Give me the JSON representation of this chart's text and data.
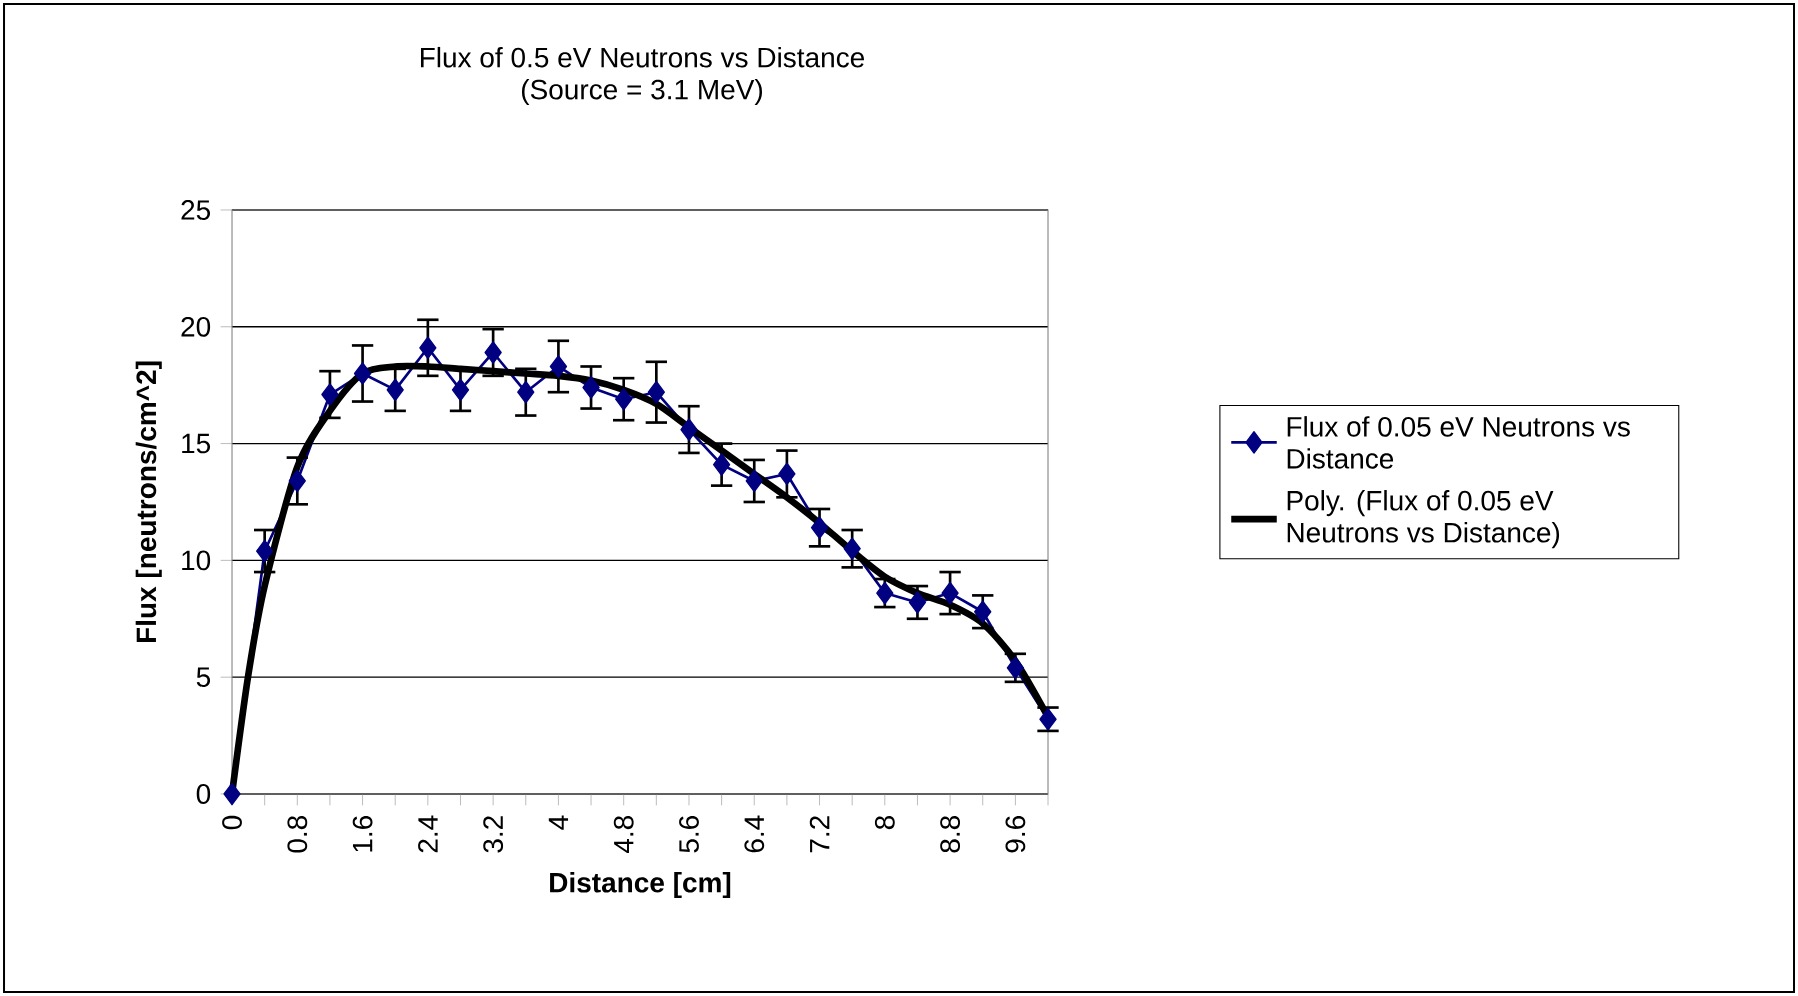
{
  "chart_data": {
    "type": "line",
    "title": "Flux of 0.5 eV Neutrons vs Distance",
    "subtitle": "(Source = 3.1 MeV)",
    "xlabel": "Distance [cm]",
    "ylabel": "Flux [neutrons/cm^2]",
    "xlim": [
      0,
      10
    ],
    "ylim": [
      0,
      25
    ],
    "xticks": [
      0,
      {
        "value": 0.4,
        "label": null
      },
      0.8,
      {
        "value": 1.2,
        "label": null
      },
      1.6,
      {
        "value": 2.0,
        "label": null
      },
      2.4,
      {
        "value": 2.8,
        "label": null
      },
      3.2,
      {
        "value": 3.6,
        "label": null
      },
      4,
      {
        "value": 4.4,
        "label": null
      },
      4.8,
      {
        "value": 5.2,
        "label": null
      },
      5.6,
      {
        "value": 6.0,
        "label": null
      },
      6.4,
      {
        "value": 6.8,
        "label": null
      },
      7.2,
      {
        "value": 7.6,
        "label": null
      },
      8,
      {
        "value": 8.4,
        "label": null
      },
      8.8,
      {
        "value": 9.2,
        "label": null
      },
      9.6,
      {
        "value": 10.0,
        "label": null
      }
    ],
    "yticks": [
      0,
      5,
      10,
      15,
      20,
      25
    ],
    "grid": "y",
    "legend": "right",
    "series": [
      {
        "name": "Flux of 0.05 eV Neutrons vs Distance",
        "color": "#000080",
        "marker": "diamond",
        "x": [
          0,
          0.4,
          0.8,
          1.2,
          1.6,
          2.0,
          2.4,
          2.8,
          3.2,
          3.6,
          4.0,
          4.4,
          4.8,
          5.2,
          5.6,
          6.0,
          6.4,
          6.8,
          7.2,
          7.6,
          8.0,
          8.4,
          8.8,
          9.2,
          9.6,
          10.0
        ],
        "values": [
          0,
          10.4,
          13.4,
          17.1,
          18.0,
          17.3,
          19.1,
          17.3,
          18.9,
          17.2,
          18.3,
          17.4,
          16.9,
          17.2,
          15.6,
          14.1,
          13.4,
          13.7,
          11.4,
          10.5,
          8.6,
          8.2,
          8.6,
          7.8,
          5.4,
          3.2
        ],
        "errors": [
          null,
          0.9,
          1.0,
          1.0,
          1.2,
          0.9,
          1.2,
          0.9,
          1.0,
          1.0,
          1.1,
          0.9,
          0.9,
          1.3,
          1.0,
          0.9,
          0.9,
          1.0,
          0.8,
          0.8,
          0.6,
          0.7,
          0.9,
          0.7,
          0.6,
          0.5
        ]
      },
      {
        "name": "Poly. (Flux of 0.05 eV Neutrons vs Distance)",
        "color": "#000000",
        "marker": "none",
        "x": [
          0,
          0.2,
          0.4,
          0.8,
          1.2,
          1.6,
          2.0,
          2.4,
          2.8,
          3.2,
          3.6,
          4.0,
          4.4,
          4.8,
          5.2,
          5.6,
          6.0,
          6.4,
          6.8,
          7.2,
          7.6,
          8.0,
          8.4,
          8.8,
          9.2,
          9.6,
          10.0
        ],
        "values": [
          0,
          5.1,
          8.9,
          14.0,
          16.4,
          18.0,
          18.3,
          18.3,
          18.2,
          18.1,
          18.0,
          17.9,
          17.7,
          17.3,
          16.7,
          15.7,
          14.7,
          13.7,
          12.7,
          11.6,
          10.4,
          9.3,
          8.6,
          8.1,
          7.3,
          5.7,
          3.3
        ]
      }
    ]
  }
}
